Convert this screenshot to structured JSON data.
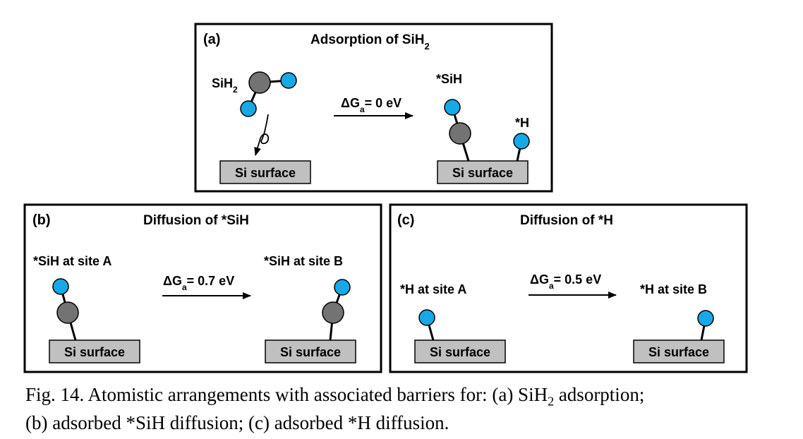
{
  "colors": {
    "silicon_atom": "#737373",
    "hydrogen_atom": "#17a9e6",
    "surface_fill": "#c0c0c0",
    "frame": "#000000"
  },
  "panel_a": {
    "tag": "(a)",
    "title": "Adsorption of SiH",
    "title_sub": "2",
    "molecule_label": "SiH",
    "molecule_label_sub": "2",
    "arrow_prefix": "ΔG",
    "arrow_sub": "a",
    "arrow_value": "= 0 eV",
    "product_sih_label": "*SiH",
    "product_h_label": "*H",
    "surface_left": "Si surface",
    "surface_right": "Si surface"
  },
  "panel_b": {
    "tag": "(b)",
    "title": "Diffusion of *SiH",
    "left_label": "*SiH at site A",
    "right_label": "*SiH at site B",
    "arrow_prefix": "ΔG",
    "arrow_sub": "a",
    "arrow_value": "= 0.7 eV",
    "surface_left": "Si surface",
    "surface_right": "Si surface"
  },
  "panel_c": {
    "tag": "(c)",
    "title": "Diffusion of *H",
    "left_label": "*H at site A",
    "right_label": "*H at site B",
    "arrow_prefix": "ΔG",
    "arrow_sub": "a",
    "arrow_value": "= 0.5 eV",
    "surface_left": "Si surface",
    "surface_right": "Si surface"
  },
  "caption": {
    "line1_before": "Fig. 14. Atomistic arrangements with associated barriers for: (a) SiH",
    "line1_sub": "2",
    "line1_after": " adsorption;",
    "line2": "(b) adsorbed *SiH diffusion; (c) adsorbed *H diffusion."
  }
}
